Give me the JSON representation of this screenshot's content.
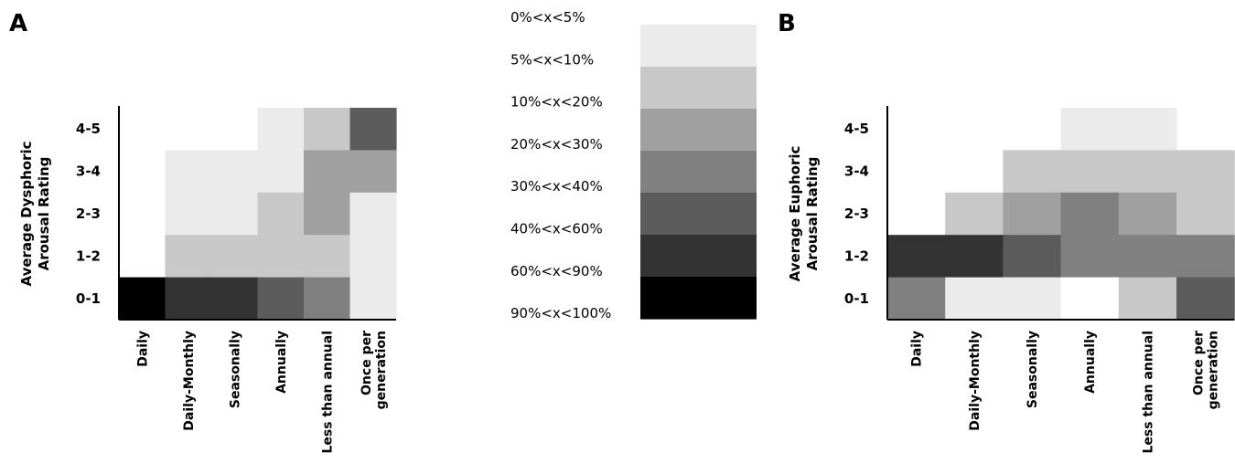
{
  "chart_data": [
    {
      "type": "heatmap",
      "panel": "A",
      "ylabel_lines": [
        "Average Dysphoric",
        "Arousal Rating"
      ],
      "x_categories": [
        "Daily",
        "Daily-Monthly",
        "Seasonally",
        "Annually",
        "Less than annual",
        "Once per generation"
      ],
      "x_label_lines": [
        [
          "Daily"
        ],
        [
          "Daily-Monthly"
        ],
        [
          "Seasonally"
        ],
        [
          "Annually"
        ],
        [
          "Less than annual"
        ],
        [
          "Once per",
          "generation"
        ]
      ],
      "y_categories": [
        "4-5",
        "3-4",
        "2-3",
        "1-2",
        "0-1"
      ],
      "values": [
        [
          null,
          null,
          null,
          1,
          2,
          5
        ],
        [
          null,
          1,
          1,
          1,
          3,
          3
        ],
        [
          null,
          1,
          1,
          2,
          3,
          1
        ],
        [
          null,
          2,
          2,
          2,
          2,
          1
        ],
        [
          7,
          6,
          6,
          5,
          4,
          1
        ]
      ]
    },
    {
      "type": "heatmap",
      "panel": "B",
      "ylabel_lines": [
        "Average Euphoric",
        "Arousal Rating"
      ],
      "x_categories": [
        "Daily",
        "Daily-Monthly",
        "Seasonally",
        "Annually",
        "Less than annual",
        "Once per generation"
      ],
      "x_label_lines": [
        [
          "Daily"
        ],
        [
          "Daily-Monthly"
        ],
        [
          "Seasonally"
        ],
        [
          "Annually"
        ],
        [
          "Less than annual"
        ],
        [
          "Once per",
          "generation"
        ]
      ],
      "y_categories": [
        "4-5",
        "3-4",
        "2-3",
        "1-2",
        "0-1"
      ],
      "values": [
        [
          null,
          null,
          null,
          1,
          1,
          null
        ],
        [
          null,
          null,
          2,
          2,
          2,
          2
        ],
        [
          null,
          2,
          3,
          4,
          3,
          2
        ],
        [
          6,
          6,
          5,
          4,
          4,
          4
        ],
        [
          4,
          1,
          1,
          0,
          2,
          5
        ]
      ]
    }
  ],
  "legend": {
    "bins": [
      {
        "label": "0%<x<5%",
        "color": "#ffffff"
      },
      {
        "label": "5%<x<10%",
        "color": "#ebebeb"
      },
      {
        "label": "10%<x<20%",
        "color": "#c8c8c8"
      },
      {
        "label": "20%<x<30%",
        "color": "#a0a0a0"
      },
      {
        "label": "30%<x<40%",
        "color": "#808080"
      },
      {
        "label": "40%<x<60%",
        "color": "#5c5c5c"
      },
      {
        "label": "60%<x<90%",
        "color": "#333333"
      },
      {
        "label": "90%<x<100%",
        "color": "#000000"
      }
    ]
  }
}
